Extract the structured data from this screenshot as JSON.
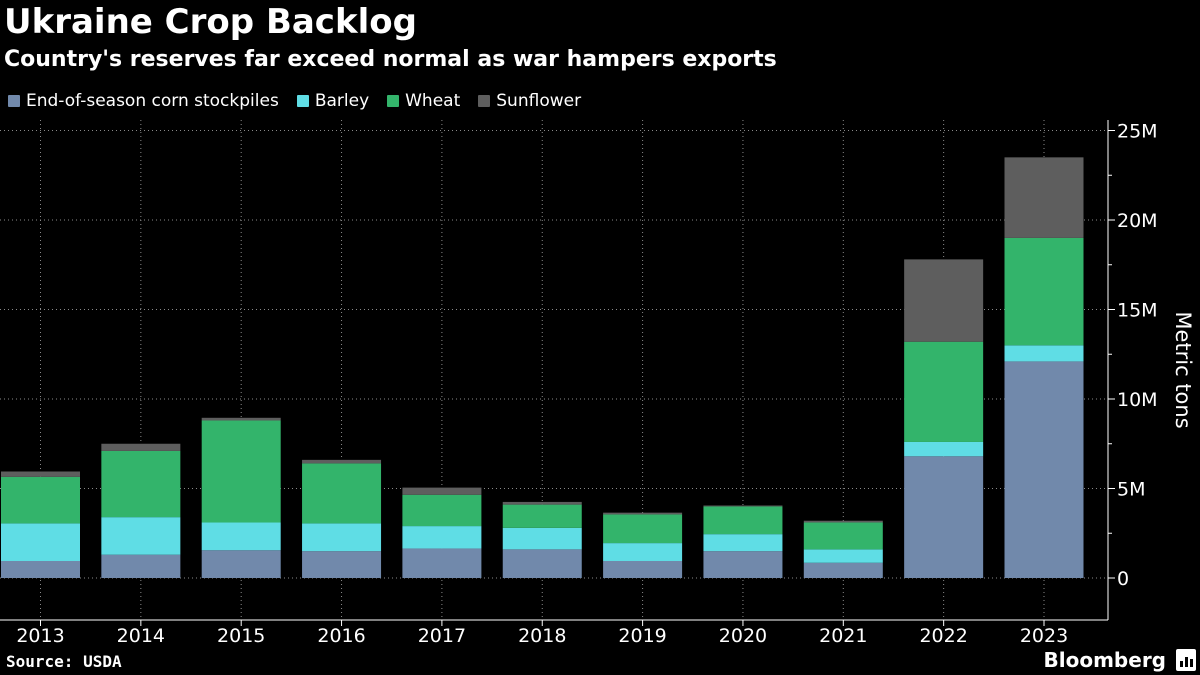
{
  "header": {
    "title": "Ukraine Crop Backlog",
    "subtitle": "Country's reserves far exceed normal as war hampers exports"
  },
  "footer": {
    "source": "Source: USDA",
    "brand": "Bloomberg",
    "brand_icon": "bloomberg-terminal-icon"
  },
  "colors": {
    "background": "#000000",
    "corn": "#7189ab",
    "barley": "#5fdde5",
    "wheat": "#33b46b",
    "sunflower": "#5e5e5e",
    "grid": "#8a8a8a",
    "text": "#ffffff"
  },
  "chart_data": {
    "type": "bar",
    "stacked": true,
    "title": "Ukraine Crop Backlog",
    "subtitle": "Country's reserves far exceed normal as war hampers exports",
    "categories": [
      "2013",
      "2014",
      "2015",
      "2016",
      "2017",
      "2018",
      "2019",
      "2020",
      "2021",
      "2022",
      "2023"
    ],
    "series": [
      {
        "name": "End-of-season corn stockpiles",
        "color": "#7189ab",
        "values": [
          0.95,
          1.3,
          1.55,
          1.5,
          1.65,
          1.6,
          0.95,
          1.5,
          0.85,
          6.8,
          12.1
        ]
      },
      {
        "name": "Barley",
        "color": "#5fdde5",
        "values": [
          2.1,
          2.1,
          1.55,
          1.55,
          1.25,
          1.2,
          1.0,
          0.95,
          0.75,
          0.8,
          0.9
        ]
      },
      {
        "name": "Wheat",
        "color": "#33b46b",
        "values": [
          2.6,
          3.7,
          5.7,
          3.35,
          1.75,
          1.3,
          1.6,
          1.55,
          1.5,
          5.6,
          6.0
        ]
      },
      {
        "name": "Sunflower",
        "color": "#5e5e5e",
        "values": [
          0.3,
          0.4,
          0.15,
          0.2,
          0.4,
          0.15,
          0.1,
          0.05,
          0.1,
          4.6,
          4.5
        ]
      }
    ],
    "ylabel": "Metric tons",
    "xlabel": "",
    "ylim": [
      -2.5,
      25.5
    ],
    "yticks": [
      0,
      5,
      10,
      15,
      20,
      25
    ],
    "ytick_labels": [
      "0",
      "5M",
      "10M",
      "15M",
      "20M",
      "25M"
    ],
    "yaxis_side": "right",
    "grid": true,
    "legend_position": "top-left"
  }
}
